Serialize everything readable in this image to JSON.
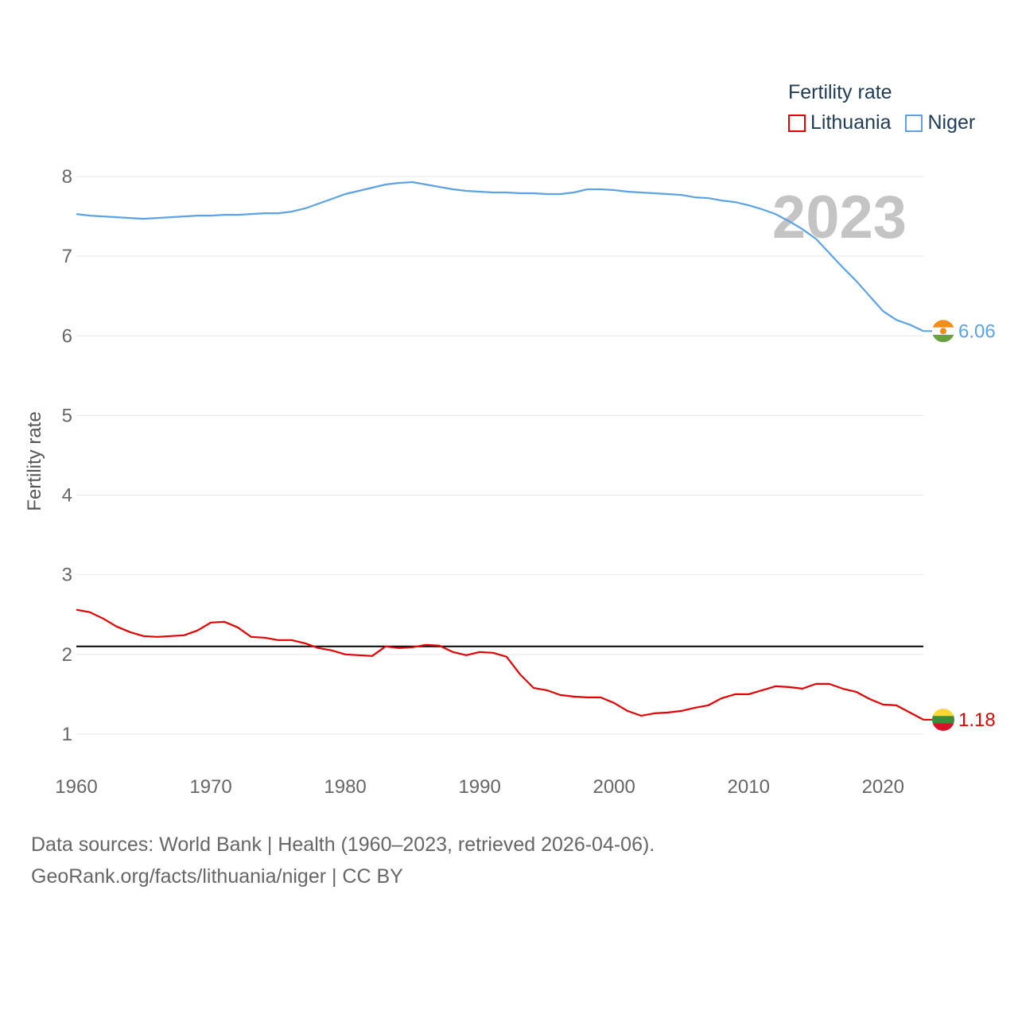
{
  "legend": {
    "title": "Fertility rate",
    "items": [
      {
        "label": "Lithuania",
        "color": "#e60000"
      },
      {
        "label": "Niger",
        "color": "#5ba3e6"
      }
    ]
  },
  "source": {
    "line1": "Data sources: World Bank | Health (1960–2023, retrieved 2026-04-06).",
    "line2": "GeoRank.org/facts/lithuania/niger | CC BY"
  },
  "chart_data": {
    "type": "line",
    "title": "Fertility rate",
    "xlabel": "",
    "ylabel": "Fertility rate",
    "xlim": [
      1960,
      2023
    ],
    "ylim": [
      0.65,
      8.15
    ],
    "yticks": [
      1,
      2,
      3,
      4,
      5,
      6,
      7,
      8
    ],
    "xticks": [
      1960,
      1970,
      1980,
      1990,
      2000,
      2010,
      2020
    ],
    "grid": true,
    "year_label": "2023",
    "reference_line": {
      "y": 2.1,
      "color": "#000000"
    },
    "x": [
      1960,
      1961,
      1962,
      1963,
      1964,
      1965,
      1966,
      1967,
      1968,
      1969,
      1970,
      1971,
      1972,
      1973,
      1974,
      1975,
      1976,
      1977,
      1978,
      1979,
      1980,
      1981,
      1982,
      1983,
      1984,
      1985,
      1986,
      1987,
      1988,
      1989,
      1990,
      1991,
      1992,
      1993,
      1994,
      1995,
      1996,
      1997,
      1998,
      1999,
      2000,
      2001,
      2002,
      2003,
      2004,
      2005,
      2006,
      2007,
      2008,
      2009,
      2010,
      2011,
      2012,
      2013,
      2014,
      2015,
      2016,
      2017,
      2018,
      2019,
      2020,
      2021,
      2022,
      2023
    ],
    "series": [
      {
        "name": "Lithuania",
        "color": "#e60000",
        "end_label": "1.18",
        "values": [
          2.56,
          2.53,
          2.45,
          2.35,
          2.28,
          2.23,
          2.22,
          2.23,
          2.24,
          2.3,
          2.4,
          2.41,
          2.34,
          2.22,
          2.21,
          2.18,
          2.18,
          2.14,
          2.08,
          2.05,
          2.0,
          1.99,
          1.98,
          2.1,
          2.08,
          2.09,
          2.12,
          2.11,
          2.03,
          1.99,
          2.03,
          2.02,
          1.97,
          1.75,
          1.58,
          1.55,
          1.49,
          1.47,
          1.46,
          1.46,
          1.39,
          1.29,
          1.23,
          1.26,
          1.27,
          1.29,
          1.33,
          1.36,
          1.45,
          1.5,
          1.5,
          1.55,
          1.6,
          1.59,
          1.57,
          1.63,
          1.63,
          1.57,
          1.53,
          1.44,
          1.37,
          1.36,
          1.27,
          1.18
        ]
      },
      {
        "name": "Niger",
        "color": "#5ba3e6",
        "end_label": "6.06",
        "values": [
          7.53,
          7.51,
          7.5,
          7.49,
          7.48,
          7.47,
          7.48,
          7.49,
          7.5,
          7.51,
          7.51,
          7.52,
          7.52,
          7.53,
          7.54,
          7.54,
          7.56,
          7.6,
          7.66,
          7.72,
          7.78,
          7.82,
          7.86,
          7.9,
          7.92,
          7.93,
          7.9,
          7.87,
          7.84,
          7.82,
          7.81,
          7.8,
          7.8,
          7.79,
          7.79,
          7.78,
          7.78,
          7.8,
          7.84,
          7.84,
          7.83,
          7.81,
          7.8,
          7.79,
          7.78,
          7.77,
          7.74,
          7.73,
          7.7,
          7.68,
          7.64,
          7.59,
          7.53,
          7.44,
          7.34,
          7.22,
          7.04,
          6.86,
          6.69,
          6.5,
          6.31,
          6.2,
          6.14,
          6.06
        ]
      }
    ]
  }
}
